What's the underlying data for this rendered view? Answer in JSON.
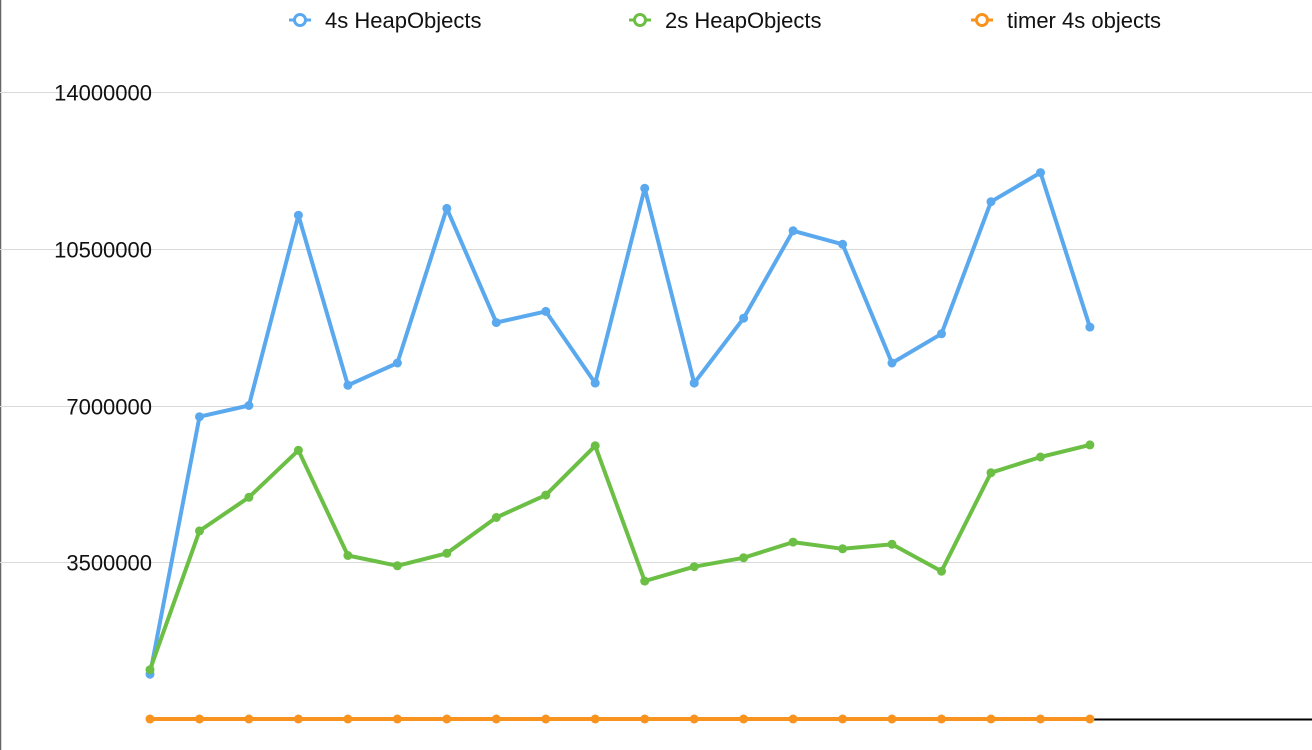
{
  "chart_data": {
    "type": "line",
    "title": "",
    "xlabel": "",
    "ylabel": "",
    "ylim": [
      0,
      14000000
    ],
    "yticks": [
      3500000,
      7000000,
      10500000,
      14000000
    ],
    "ytick_labels": [
      "3500000",
      "7000000",
      "10500000",
      "14000000"
    ],
    "grid": true,
    "legend_position": "top",
    "x": [
      1,
      2,
      3,
      4,
      5,
      6,
      7,
      8,
      9,
      10,
      11,
      12,
      13,
      14,
      15,
      16,
      17,
      18,
      19,
      20
    ],
    "series": [
      {
        "name": "4s HeapObjects",
        "color": "#5aa9ef",
        "values": [
          1000000,
          6750000,
          7000000,
          11250000,
          7450000,
          7950000,
          11400000,
          8850000,
          9100000,
          7500000,
          11850000,
          7500000,
          8950000,
          10900000,
          10600000,
          7950000,
          8600000,
          11550000,
          12200000,
          8750000
        ]
      },
      {
        "name": "2s HeapObjects",
        "color": "#6cbf45",
        "values": [
          1100000,
          4200000,
          4950000,
          6000000,
          3650000,
          3420000,
          3700000,
          4500000,
          5000000,
          6100000,
          3080000,
          3400000,
          3600000,
          3950000,
          3800000,
          3900000,
          3300000,
          5500000,
          5850000,
          6120000
        ]
      },
      {
        "name": "timer 4s objects",
        "color": "#f7931e",
        "values": [
          0,
          0,
          0,
          0,
          0,
          0,
          0,
          0,
          0,
          0,
          0,
          0,
          0,
          0,
          0,
          0,
          0,
          0,
          0,
          0
        ]
      }
    ]
  }
}
